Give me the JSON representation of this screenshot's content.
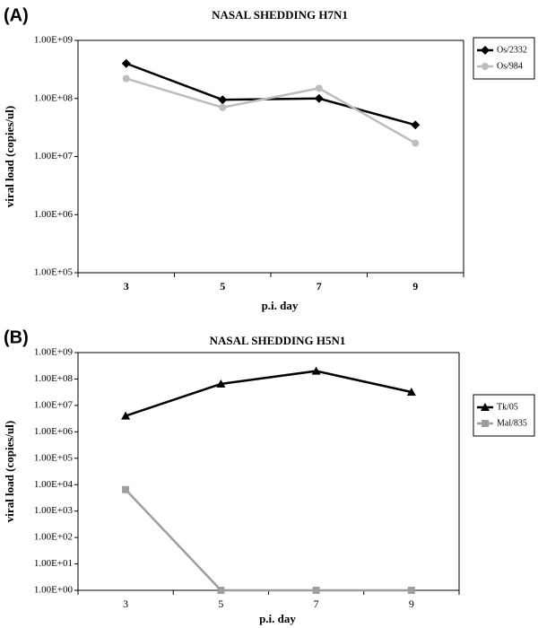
{
  "chart_data": [
    {
      "type": "line",
      "panel_label": "(A)",
      "title": "NASAL SHEDDING H7N1",
      "xlabel": "p.i. day",
      "ylabel": "viral load (copies/ul)",
      "y_scale": "log",
      "ylim": [
        100000,
        1000000000
      ],
      "y_ticks": [
        100000,
        1000000,
        10000000,
        100000000,
        1000000000
      ],
      "y_tick_labels": [
        "1.00E+05",
        "1.00E+06",
        "1.00E+07",
        "1.00E+08",
        "1.00E+09"
      ],
      "categories": [
        "3",
        "5",
        "7",
        "9"
      ],
      "grid": false,
      "legend_position": "top-right",
      "series": [
        {
          "name": "Os/2332",
          "color": "#000000",
          "marker": "diamond",
          "values": [
            400000000,
            95000000,
            100000000,
            35000000
          ]
        },
        {
          "name": "Os/984",
          "color": "#bdbdbd",
          "marker": "circle",
          "values": [
            220000000,
            70000000,
            150000000,
            17000000
          ]
        }
      ]
    },
    {
      "type": "line",
      "panel_label": "(B)",
      "title": "NASAL SHEDDING H5N1",
      "xlabel": "p.i. day",
      "ylabel": "viral load (copies/ul)",
      "y_scale": "log",
      "ylim": [
        1,
        1000000000
      ],
      "y_ticks": [
        1,
        10,
        100,
        1000,
        10000,
        100000,
        1000000,
        10000000,
        100000000,
        1000000000
      ],
      "y_tick_labels": [
        "1.00E+00",
        "1.00E+01",
        "1.00E+02",
        "1.00E+03",
        "1.00E+04",
        "1.00E+05",
        "1.00E+06",
        "1.00E+07",
        "1.00E+08",
        "1.00E+09"
      ],
      "categories": [
        "3",
        "5",
        "7",
        "9"
      ],
      "grid": false,
      "legend_position": "top-right",
      "series": [
        {
          "name": "Tk/05",
          "color": "#000000",
          "marker": "triangle",
          "values": [
            4000000,
            65000000,
            200000000,
            32000000
          ]
        },
        {
          "name": "Mal/835",
          "color": "#9e9e9e",
          "marker": "square",
          "values": [
            6500,
            1,
            1,
            1
          ]
        }
      ]
    }
  ]
}
